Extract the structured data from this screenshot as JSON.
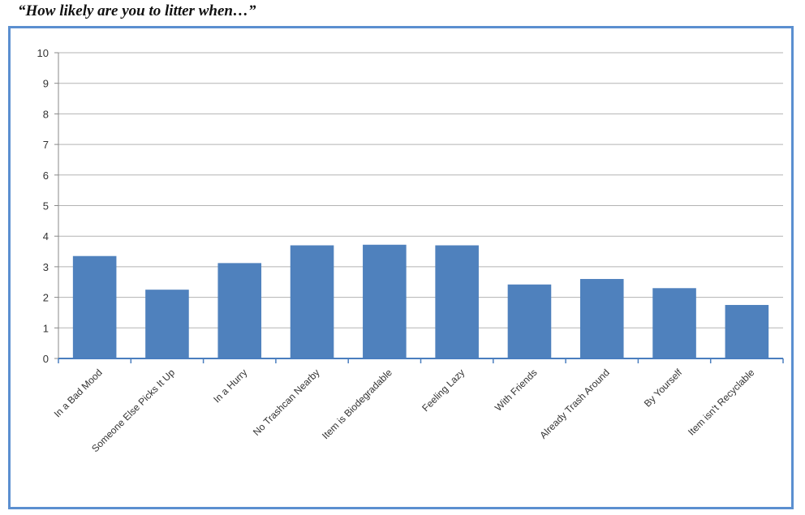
{
  "chart_data": {
    "type": "bar",
    "title": "“How likely are you to litter when…”",
    "xlabel": "",
    "ylabel": "",
    "categories": [
      "In a Bad Mood",
      "Someone Else Picks It Up",
      "In a Hurry",
      "No Trashcan Nearby",
      "Item is Biodegradable",
      "Feeling Lazy",
      "With Friends",
      "Already Trash Around",
      "By Yourself",
      "Item isn't Recyclable"
    ],
    "values": [
      3.35,
      2.25,
      3.12,
      3.7,
      3.72,
      3.7,
      2.42,
      2.6,
      2.3,
      1.75
    ],
    "ylim": [
      0,
      10
    ],
    "yticks": [
      "0",
      "1",
      "2",
      "3",
      "4",
      "5",
      "6",
      "7",
      "8",
      "9",
      "10"
    ],
    "grid": true,
    "colors": {
      "bar": "#4f81bd",
      "frame": "#5b8fd0",
      "axis": "#4a7ebf",
      "grid": "#b3b3b3"
    }
  }
}
